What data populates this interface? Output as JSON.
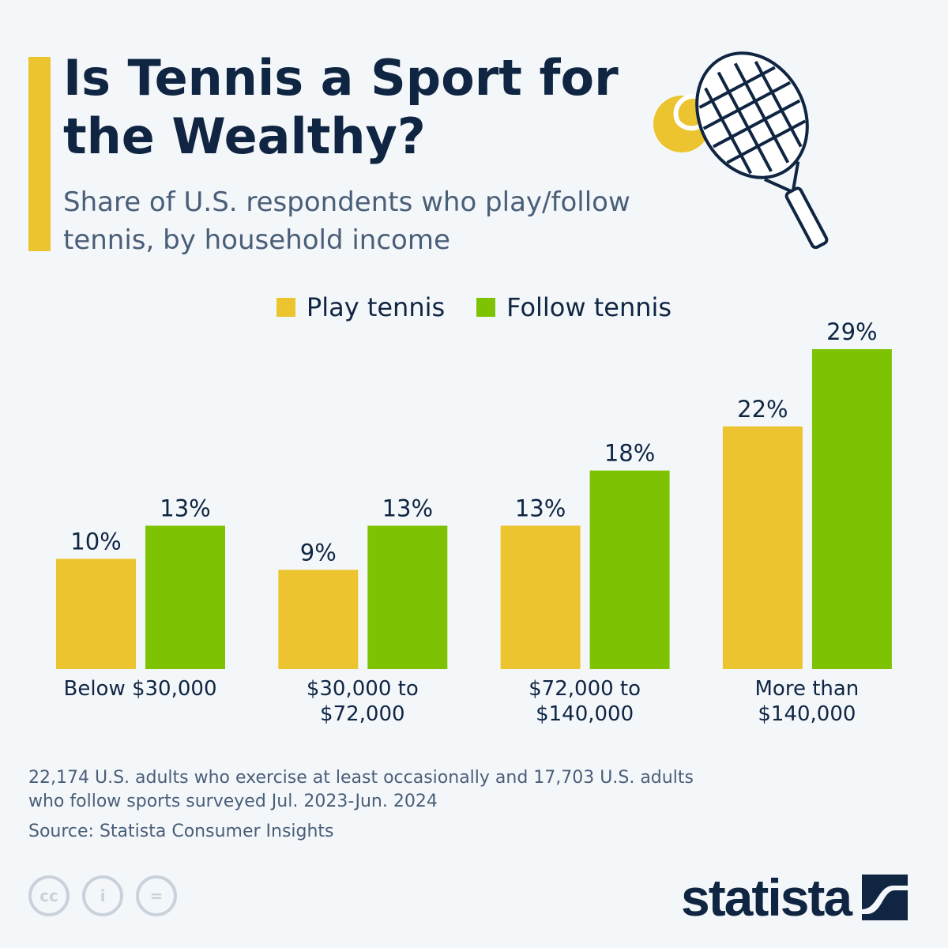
{
  "header": {
    "title": "Is Tennis a Sport for the Wealthy?",
    "subtitle": "Share of U.S. respondents who play/follow tennis, by household income"
  },
  "chart_data": {
    "type": "bar",
    "title": "Is Tennis a Sport for the Wealthy?",
    "xlabel": "",
    "ylabel": "",
    "ylim": [
      0,
      30
    ],
    "grid": false,
    "legend_position": "top-center",
    "categories": [
      "Below $30,000",
      "$30,000 to $72,000",
      "$72,000 to $140,000",
      "More than $140,000"
    ],
    "category_lines": [
      [
        "Below $30,000"
      ],
      [
        "$30,000 to",
        "$72,000"
      ],
      [
        "$72,000 to",
        "$140,000"
      ],
      [
        "More than",
        "$140,000"
      ]
    ],
    "series": [
      {
        "name": "Play tennis",
        "color": "#ecc42f",
        "values": [
          10,
          9,
          13,
          22
        ],
        "labels": [
          "10%",
          "9%",
          "13%",
          "22%"
        ]
      },
      {
        "name": "Follow tennis",
        "color": "#7dc304",
        "values": [
          13,
          13,
          18,
          29
        ],
        "labels": [
          "13%",
          "13%",
          "18%",
          "29%"
        ]
      }
    ]
  },
  "footer": {
    "note": "22,174 U.S. adults who exercise at least occasionally and 17,703 U.S. adults who follow sports surveyed Jul. 2023-Jun. 2024",
    "source": "Source: Statista Consumer Insights",
    "brand": "statista",
    "license_icons": [
      "cc-icon",
      "attribution-icon",
      "no-derivatives-icon"
    ]
  }
}
